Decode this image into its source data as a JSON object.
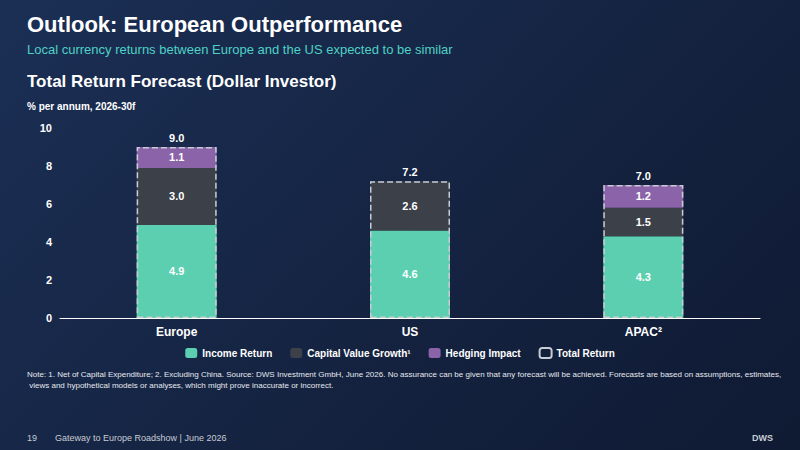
{
  "chart_data": {
    "type": "bar",
    "title": "Outlook: European Outperformance",
    "subtitle": "Local currency returns between Europe and the US expected to be similar",
    "chart_title": "Total Return Forecast (Dollar Investor)",
    "y_label": "% per annum, 2026-30f",
    "categories": [
      "Europe",
      "US",
      "APAC²"
    ],
    "series": [
      {
        "name": "Income Return",
        "color": "#5ccfb0",
        "values": [
          4.9,
          4.6,
          4.3
        ],
        "value_labels": [
          "4.9",
          "4.6",
          "4.3"
        ]
      },
      {
        "name": "Capital Value Growth¹",
        "color": "#3b4049",
        "values": [
          3.0,
          2.6,
          1.5
        ],
        "value_labels": [
          "3.0",
          "2.6",
          "1.5"
        ]
      },
      {
        "name": "Hedging Impact",
        "color": "#8a63a8",
        "values": [
          1.1,
          null,
          1.2
        ],
        "value_labels": [
          "1.1",
          null,
          "1.2"
        ]
      },
      {
        "name": "Total Return",
        "type": "outline",
        "color": "#c8ccd4",
        "line_style": "dashed",
        "values": [
          9.0,
          7.2,
          7.0
        ],
        "value_labels": [
          "9.0",
          "7.2",
          "7.0"
        ]
      }
    ],
    "ylim": [
      0,
      10
    ],
    "yticks": [
      0,
      2,
      4,
      6,
      8,
      10
    ],
    "stacked": true,
    "data_labels": true,
    "grid": false,
    "legend": "bottom",
    "note": "Note: 1. Net of Capital Expenditure; 2. Excluding China. Source: DWS Investment GmbH, June 2026. No assurance can be given that any forecast will be achieved. Forecasts are based on assumptions, estimates, views and hypothetical models or analyses, which might prove inaccurate or incorrect.",
    "footer": {
      "page": "19",
      "text": "Gateway to Europe Roadshow | June 2026",
      "brand": "DWS"
    }
  }
}
